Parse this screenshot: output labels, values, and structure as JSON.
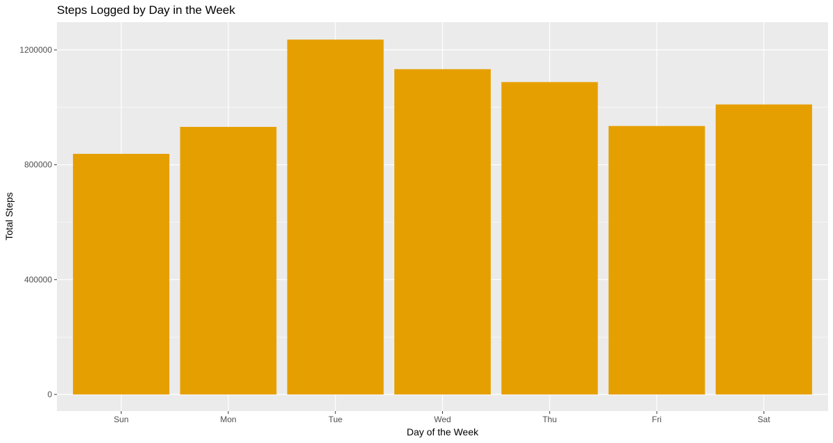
{
  "chart_data": {
    "type": "bar",
    "title": "Steps Logged by Day in the Week",
    "xlabel": "Day of the Week",
    "ylabel": "Total Steps",
    "categories": [
      "Sun",
      "Mon",
      "Tue",
      "Wed",
      "Thu",
      "Fri",
      "Sat"
    ],
    "values": [
      838000,
      932000,
      1236000,
      1133000,
      1088000,
      935000,
      1010000
    ],
    "ylim": [
      0,
      1300000
    ],
    "yticks": [
      0,
      400000,
      800000,
      1200000
    ],
    "ytick_labels": [
      "0",
      "400000",
      "800000",
      "1200000"
    ],
    "grid": true,
    "legend": "none",
    "bar_color": "#E69F00",
    "panel_color": "#EBEBEB",
    "grid_color": "#FFFFFF"
  }
}
